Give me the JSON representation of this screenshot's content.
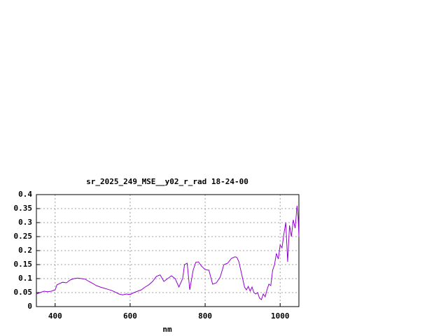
{
  "chart_data": {
    "type": "line",
    "title": "sr_2025_249_MSE__y02_r_rad 18-24-00",
    "x_label": "nm",
    "xlim": [
      350,
      1050
    ],
    "xticks": [
      400,
      600,
      800,
      1000
    ],
    "ylim": [
      0,
      0.4
    ],
    "yticks": [
      0,
      0.05,
      0.1,
      0.15,
      0.2,
      0.25,
      0.3,
      0.35,
      0.4
    ],
    "grid": true,
    "x": [
      350,
      360,
      370,
      380,
      390,
      400,
      405,
      420,
      430,
      440,
      450,
      460,
      470,
      480,
      490,
      500,
      510,
      520,
      530,
      540,
      550,
      560,
      570,
      580,
      590,
      600,
      610,
      620,
      630,
      640,
      650,
      660,
      670,
      680,
      690,
      700,
      710,
      720,
      730,
      740,
      745,
      752,
      759,
      768,
      775,
      782,
      790,
      800,
      810,
      820,
      830,
      840,
      850,
      860,
      870,
      880,
      885,
      890,
      900,
      905,
      910,
      915,
      920,
      925,
      930,
      935,
      940,
      945,
      950,
      955,
      960,
      965,
      970,
      975,
      980,
      985,
      990,
      995,
      1000,
      1005,
      1010,
      1015,
      1020,
      1025,
      1030,
      1035,
      1040,
      1045,
      1048,
      1050
    ],
    "series": [
      {
        "color": "#9400d3",
        "values": [
          0.045,
          0.05,
          0.055,
          0.053,
          0.055,
          0.06,
          0.078,
          0.087,
          0.085,
          0.095,
          0.1,
          0.102,
          0.1,
          0.098,
          0.09,
          0.083,
          0.075,
          0.07,
          0.066,
          0.062,
          0.058,
          0.052,
          0.045,
          0.042,
          0.045,
          0.043,
          0.05,
          0.055,
          0.06,
          0.07,
          0.078,
          0.09,
          0.108,
          0.113,
          0.09,
          0.1,
          0.11,
          0.1,
          0.07,
          0.1,
          0.15,
          0.155,
          0.06,
          0.13,
          0.158,
          0.16,
          0.145,
          0.132,
          0.13,
          0.08,
          0.085,
          0.105,
          0.15,
          0.155,
          0.172,
          0.178,
          0.175,
          0.16,
          0.1,
          0.07,
          0.06,
          0.072,
          0.055,
          0.07,
          0.05,
          0.045,
          0.05,
          0.03,
          0.025,
          0.045,
          0.035,
          0.06,
          0.08,
          0.075,
          0.13,
          0.15,
          0.19,
          0.17,
          0.22,
          0.21,
          0.26,
          0.3,
          0.16,
          0.29,
          0.25,
          0.31,
          0.28,
          0.36,
          0.32,
          0.25
        ]
      }
    ]
  }
}
